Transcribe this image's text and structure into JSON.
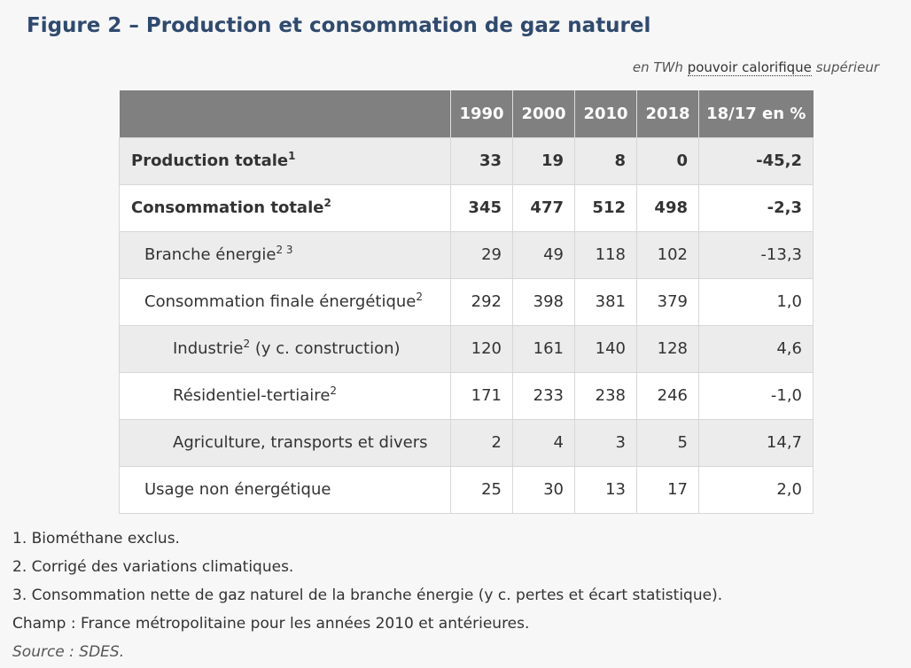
{
  "title": "Figure 2 – Production et consommation de gaz naturel",
  "unit": {
    "prefix": "en TWh",
    "middle": "pouvoir calorifique",
    "suffix": "supérieur"
  },
  "table": {
    "headers": [
      "",
      "1990",
      "2000",
      "2010",
      "2018",
      "18/17 en %"
    ],
    "rows": [
      {
        "label": "Production totale",
        "sup": "1",
        "values": [
          "33",
          "19",
          "8",
          "0",
          "-45,2"
        ]
      },
      {
        "label": "Consommation totale",
        "sup": "2",
        "values": [
          "345",
          "477",
          "512",
          "498",
          "-2,3"
        ]
      },
      {
        "label": "Branche énergie",
        "sup": "2 3",
        "values": [
          "29",
          "49",
          "118",
          "102",
          "-13,3"
        ]
      },
      {
        "label": "Consommation finale énergétique",
        "sup": "2",
        "values": [
          "292",
          "398",
          "381",
          "379",
          "1,0"
        ]
      },
      {
        "label": "Industrie",
        "sup": "2",
        "label_after": " (y c. construction)",
        "values": [
          "120",
          "161",
          "140",
          "128",
          "4,6"
        ]
      },
      {
        "label": "Résidentiel-tertiaire",
        "sup": "2",
        "values": [
          "171",
          "233",
          "238",
          "246",
          "-1,0"
        ]
      },
      {
        "label": "Agriculture, transports et divers",
        "sup": "",
        "values": [
          "2",
          "4",
          "3",
          "5",
          "14,7"
        ]
      },
      {
        "label": "Usage non énergétique",
        "sup": "",
        "values": [
          "25",
          "30",
          "13",
          "17",
          "2,0"
        ]
      }
    ]
  },
  "notes": [
    "1. Biométhane exclus.",
    "2. Corrigé des variations climatiques.",
    "3. Consommation nette de gaz naturel de la branche énergie (y c. pertes et écart statistique).",
    "Champ : France métropolitaine pour les années 2010 et antérieures."
  ],
  "source": "Source : SDES."
}
